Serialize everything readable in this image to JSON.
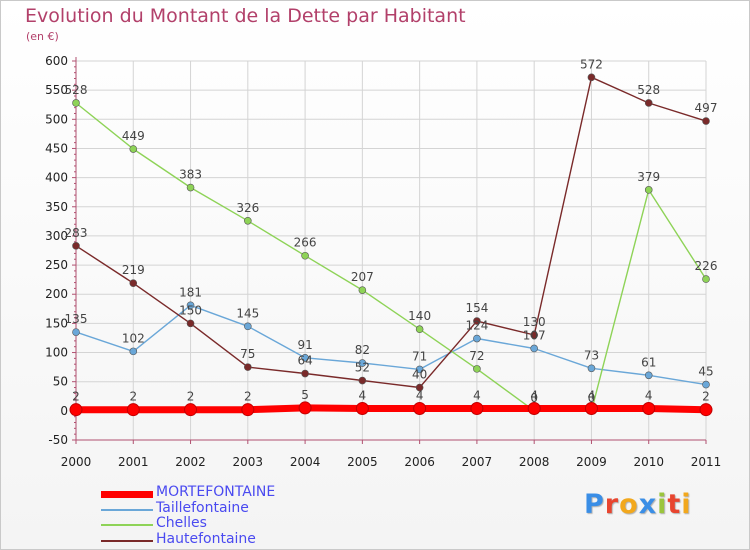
{
  "page": {
    "title": "Evolution du Montant de la Dette par Habitant",
    "subtitle": "(en €)"
  },
  "brand": {
    "letters": [
      {
        "ch": "P",
        "color": "#3a8ee6"
      },
      {
        "ch": "r",
        "color": "#e8452f"
      },
      {
        "ch": "o",
        "color": "#f2a81d"
      },
      {
        "ch": "x",
        "color": "#3a8ee6"
      },
      {
        "ch": "i",
        "color": "#9bc53d"
      },
      {
        "ch": "t",
        "color": "#e8452f"
      },
      {
        "ch": "i",
        "color": "#f2a81d"
      }
    ]
  },
  "chart_data": {
    "type": "line",
    "title": "Evolution du Montant de la Dette par Habitant",
    "ylabel": "(en €)",
    "xlabel": "",
    "ylim": [
      -50,
      600
    ],
    "yticks": [
      -50,
      0,
      50,
      100,
      150,
      200,
      250,
      300,
      350,
      400,
      450,
      500,
      550,
      600
    ],
    "grid": true,
    "legend_position": "bottom-left",
    "categories": [
      "2000",
      "2001",
      "2002",
      "2003",
      "2004",
      "2005",
      "2006",
      "2007",
      "2008",
      "2009",
      "2010",
      "2011"
    ],
    "series": [
      {
        "name": "MORTEFONTAINE",
        "color": "#ff0000",
        "bold": true,
        "values": [
          2,
          2,
          2,
          2,
          5,
          4,
          4,
          4,
          4,
          4,
          4,
          2
        ]
      },
      {
        "name": "Taillefontaine",
        "color": "#6aa7d8",
        "bold": false,
        "values": [
          135,
          102,
          181,
          145,
          91,
          82,
          71,
          124,
          107,
          73,
          61,
          45
        ]
      },
      {
        "name": "Chelles",
        "color": "#8ed357",
        "bold": false,
        "values": [
          528,
          449,
          383,
          326,
          266,
          207,
          140,
          72,
          0,
          0,
          379,
          226
        ]
      },
      {
        "name": "Hautefontaine",
        "color": "#7a2a2a",
        "bold": false,
        "values": [
          283,
          219,
          150,
          75,
          64,
          52,
          40,
          154,
          130,
          572,
          528,
          497
        ]
      }
    ]
  }
}
